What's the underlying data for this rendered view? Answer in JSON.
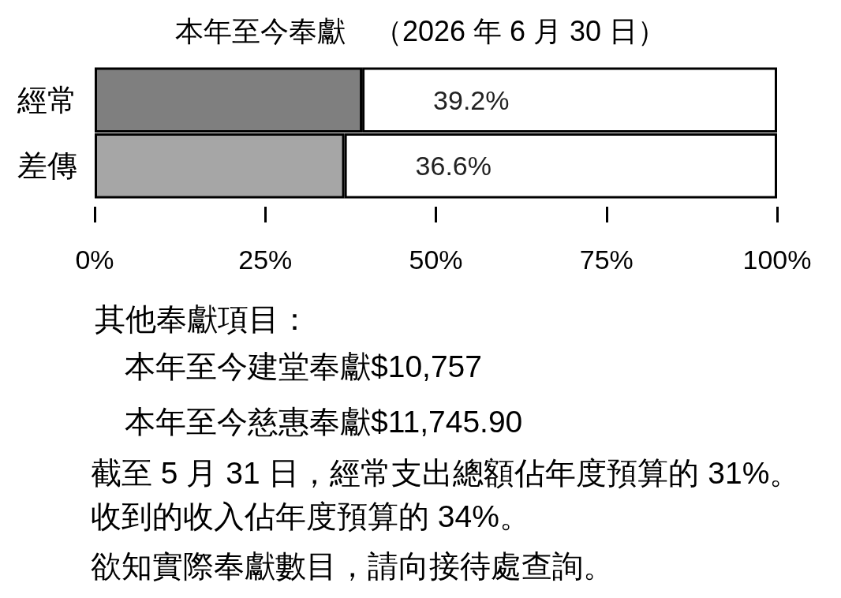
{
  "chart_data": {
    "type": "bar",
    "title": "本年至今奉獻　（2026 年 6 月 30 日）",
    "orientation": "horizontal",
    "stacked": true,
    "categories": [
      "經常",
      "差傳"
    ],
    "series": [
      {
        "colors": [
          "#7f7f7f",
          "#a6a6a6"
        ],
        "color": "#7f7f7f",
        "values": [
          39.2,
          36.6
        ],
        "value_labels": [
          "39.2%",
          "36.6%"
        ]
      },
      {
        "color": "#ffffff",
        "values": [
          60.8,
          63.4
        ]
      }
    ],
    "xlim": [
      0,
      100
    ],
    "xticks": [
      {
        "value": 0,
        "label": "0%"
      },
      {
        "value": 25,
        "label": "25%"
      },
      {
        "value": 50,
        "label": "50%"
      },
      {
        "value": 75,
        "label": "75%"
      },
      {
        "value": 100,
        "label": "100%"
      }
    ],
    "annotations": [
      "其他奉獻項目：",
      "本年至今建堂奉獻$10,757",
      "本年至今慈惠奉獻$11,745.90",
      "截至 5 月 31 日，經常支出總額佔年度預算的 31%。",
      "收到的收入佔年度預算的 34%。",
      "欲知實際奉獻數目，請向接待處查詢。"
    ]
  }
}
